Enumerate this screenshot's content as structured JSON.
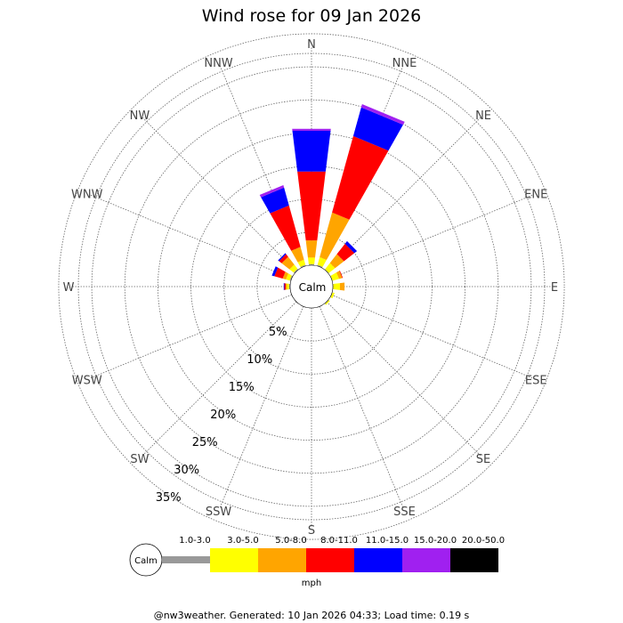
{
  "chart_data": {
    "type": "wind-rose",
    "title": "Wind rose for 09 Jan 2026",
    "directions": [
      "N",
      "NNE",
      "NE",
      "ENE",
      "E",
      "ESE",
      "SE",
      "SSE",
      "S",
      "SSW",
      "SW",
      "WSW",
      "W",
      "WNW",
      "NW",
      "NNW"
    ],
    "radial_labels": [
      "5%",
      "10%",
      "15%",
      "20%",
      "25%",
      "30%",
      "35%"
    ],
    "radial_max": 35,
    "calm_label": "Calm",
    "unit": "mph",
    "speed_bins": [
      {
        "label": "1.0-3.0",
        "color": "#999999"
      },
      {
        "label": "3.0-5.0",
        "color": "#ffff00"
      },
      {
        "label": "5.0-8.0",
        "color": "#ffa500"
      },
      {
        "label": "8.0-11.0",
        "color": "#ff0000"
      },
      {
        "label": "11.0-15.0",
        "color": "#0000ff"
      },
      {
        "label": "15.0-20.0",
        "color": "#a020f0"
      },
      {
        "label": "20.0-50.0",
        "color": "#000000"
      }
    ],
    "series": [
      {
        "direction": "N",
        "values": [
          0.2,
          1.0,
          2.6,
          10.5,
          6.2,
          0.3,
          0
        ]
      },
      {
        "direction": "NNE",
        "values": [
          0.2,
          1.2,
          7.0,
          12.0,
          4.5,
          0.5,
          0
        ]
      },
      {
        "direction": "NE",
        "values": [
          0.1,
          1.2,
          1.7,
          2.0,
          0.5,
          0,
          0
        ]
      },
      {
        "direction": "ENE",
        "values": [
          0.1,
          1.0,
          0.5,
          0.1,
          0,
          0,
          0
        ]
      },
      {
        "direction": "E",
        "values": [
          0.1,
          1.0,
          0.7,
          0,
          0,
          0,
          0
        ]
      },
      {
        "direction": "ESE",
        "values": [
          0.1,
          0.3,
          0,
          0,
          0,
          0,
          0
        ]
      },
      {
        "direction": "SE",
        "values": [
          0.1,
          0.2,
          0,
          0,
          0,
          0,
          0
        ]
      },
      {
        "direction": "SSE",
        "values": [
          0.1,
          0,
          0,
          0,
          0,
          0,
          0
        ]
      },
      {
        "direction": "S",
        "values": [
          0.1,
          0,
          0,
          0,
          0,
          0,
          0
        ]
      },
      {
        "direction": "SSW",
        "values": [
          0.1,
          0,
          0,
          0,
          0,
          0,
          0
        ]
      },
      {
        "direction": "SW",
        "values": [
          0.1,
          0,
          0,
          0,
          0,
          0,
          0
        ]
      },
      {
        "direction": "WSW",
        "values": [
          0.1,
          0,
          0,
          0,
          0,
          0,
          0
        ]
      },
      {
        "direction": "W",
        "values": [
          0.2,
          0.3,
          0.2,
          0.2,
          0.1,
          0,
          0
        ]
      },
      {
        "direction": "WNW",
        "values": [
          0.2,
          0.6,
          0.5,
          1.3,
          0.4,
          0,
          0
        ]
      },
      {
        "direction": "NW",
        "values": [
          0.2,
          0.8,
          1.5,
          0.5,
          0.2,
          0,
          0
        ]
      },
      {
        "direction": "NNW",
        "values": [
          0.2,
          0.8,
          2.0,
          6.5,
          2.8,
          0.4,
          0
        ]
      }
    ]
  },
  "footer": "@nw3weather. Generated: 10 Jan 2026 04:33; Load time: 0.19 s"
}
